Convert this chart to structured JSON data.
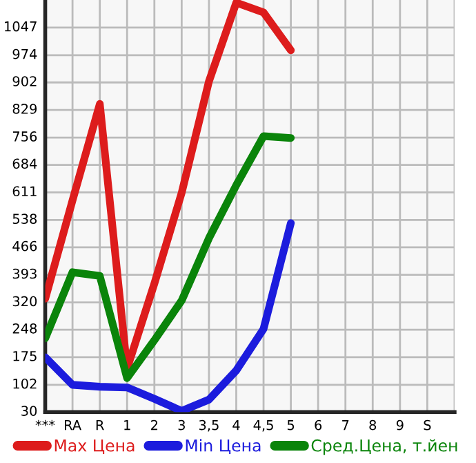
{
  "chart_data": {
    "type": "line",
    "categories": [
      "***",
      "RA",
      "R",
      "1",
      "2",
      "3",
      "3,5",
      "4",
      "4,5",
      "5",
      "6",
      "7",
      "8",
      "9",
      "S",
      null
    ],
    "series": [
      {
        "name": "Max Цена",
        "color": "#dd1c1c",
        "values": [
          330,
          590,
          845,
          145,
          370,
          610,
          905,
          1113,
          1087,
          987,
          null,
          null,
          null,
          null,
          null,
          null
        ]
      },
      {
        "name": "Min Цена",
        "color": "#1c1cdd",
        "values": [
          175,
          102,
          97,
          95,
          65,
          33,
          63,
          140,
          250,
          530,
          null,
          null,
          null,
          null,
          null,
          null
        ]
      },
      {
        "name": "Сред.Цена, т.йен",
        "color": "#0a840a",
        "values": [
          225,
          400,
          390,
          120,
          220,
          325,
          490,
          630,
          760,
          755,
          null,
          null,
          null,
          null,
          null,
          null
        ]
      }
    ],
    "ylim": [
      30,
      1120
    ],
    "yticks": [
      30,
      102,
      175,
      248,
      320,
      393,
      466,
      538,
      611,
      684,
      756,
      829,
      902,
      974,
      1047
    ],
    "grid": true,
    "legend": "bottom",
    "marker": "none",
    "line_style": "solid"
  }
}
